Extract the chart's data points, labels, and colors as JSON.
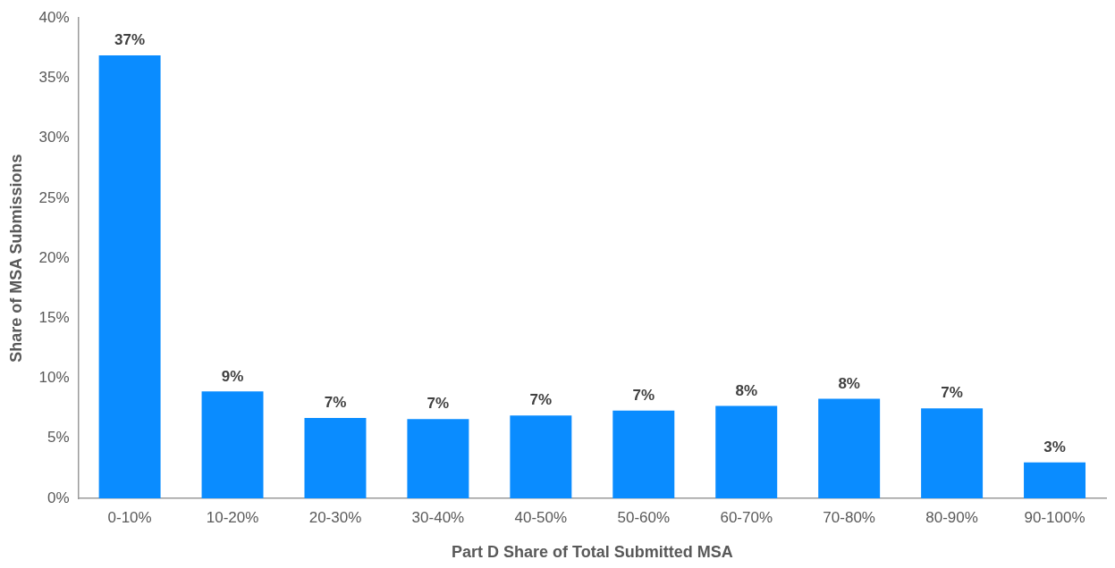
{
  "chart_data": {
    "type": "bar",
    "xlabel": "Part D Share of Total Submitted MSA",
    "ylabel": "Share of MSA Submissions",
    "categories": [
      "0-10%",
      "10-20%",
      "20-30%",
      "30-40%",
      "40-50%",
      "50-60%",
      "60-70%",
      "70-80%",
      "80-90%",
      "90-100%"
    ],
    "values": [
      36.9,
      8.9,
      6.7,
      6.6,
      6.9,
      7.3,
      7.7,
      8.3,
      7.5,
      3.0
    ],
    "value_labels": [
      "37%",
      "9%",
      "7%",
      "7%",
      "7%",
      "7%",
      "8%",
      "8%",
      "7%",
      "3%"
    ],
    "color": "#0a8cff",
    "ylim": [
      0,
      40
    ],
    "yticks": [
      {
        "value": 0,
        "label": "0%"
      },
      {
        "value": 5,
        "label": "5%"
      },
      {
        "value": 10,
        "label": "10%"
      },
      {
        "value": 15,
        "label": "15%"
      },
      {
        "value": 20,
        "label": "20%"
      },
      {
        "value": 25,
        "label": "25%"
      },
      {
        "value": 30,
        "label": "30%"
      },
      {
        "value": 35,
        "label": "35%"
      },
      {
        "value": 40,
        "label": "40%"
      }
    ]
  }
}
